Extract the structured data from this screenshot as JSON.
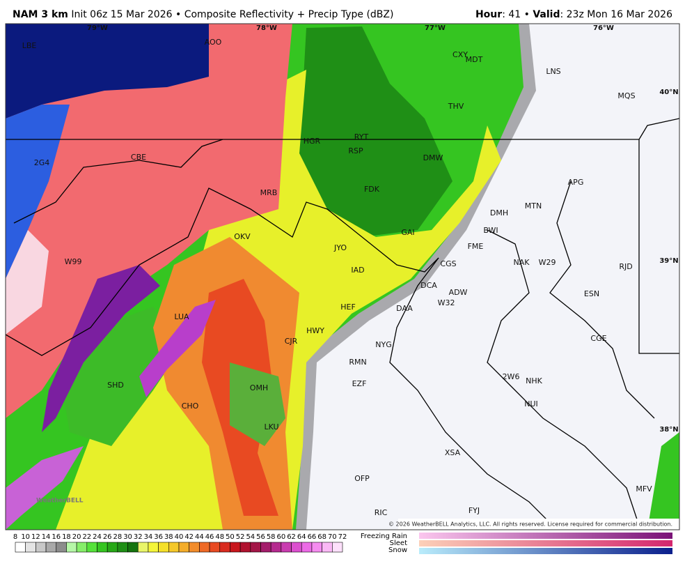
{
  "header": {
    "model": "NAM 3 km",
    "description": "Init 06z 15 Mar 2026 • Composite Reflectivity + Precip Type (dBZ)",
    "hour_label": "Hour",
    "hour_value": ": 41 •",
    "valid_label": "Valid",
    "valid_value": ": 23z Mon 16 Mar 2026"
  },
  "map": {
    "stations": [
      "LBE",
      "AOO",
      "CXY",
      "MDT",
      "LNS",
      "MQS",
      "THV",
      "HGR",
      "RYT",
      "RSP",
      "DMW",
      "2G4",
      "CBE",
      "APG",
      "FDK",
      "MRB",
      "DMH",
      "MTN",
      "BWI",
      "GAI",
      "OKV",
      "FME",
      "JYO",
      "W99",
      "NAK",
      "W29",
      "CGS",
      "RJD",
      "IAD",
      "DCA",
      "ADW",
      "ESN",
      "W32",
      "HEF",
      "DAA",
      "LUA",
      "HWY",
      "CJR",
      "CGE",
      "NYG",
      "RMN",
      "2W6",
      "NHK",
      "SHD",
      "EZF",
      "OMH",
      "CHO",
      "NUI",
      "LKU",
      "XSA",
      "OFP",
      "MFV",
      "RIC",
      "FYJ"
    ],
    "longitudes": [
      "79°W",
      "78°W",
      "77°W",
      "76°W"
    ],
    "latitudes": [
      "40°N",
      "39°N",
      "38°N"
    ],
    "logo": "WeatherBELL",
    "copyright": "© 2026 WeatherBELL Analytics, LLC. All rights reserved. License required for commercial distribution."
  },
  "colorbar": {
    "ticks": [
      8,
      10,
      12,
      14,
      16,
      18,
      20,
      22,
      24,
      26,
      28,
      30,
      32,
      34,
      36,
      38,
      40,
      42,
      44,
      46,
      48,
      50,
      52,
      54,
      56,
      58,
      60,
      62,
      64,
      66,
      68,
      70,
      72
    ]
  },
  "precip_types": [
    "Freezing Rain",
    "Sleet",
    "Snow"
  ]
}
